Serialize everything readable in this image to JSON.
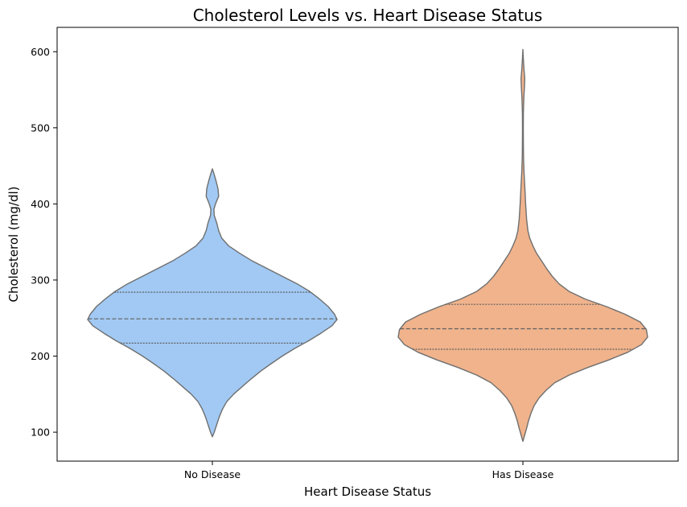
{
  "chart_data": {
    "type": "violin",
    "title": "Cholesterol Levels vs. Heart Disease Status",
    "xlabel": "Heart Disease Status",
    "ylabel": "Cholesterol (mg/dl)",
    "ylim": [
      62,
      632
    ],
    "yticks": [
      100,
      200,
      300,
      400,
      500,
      600
    ],
    "grid": false,
    "legend": "none",
    "categories": [
      "No Disease",
      "Has Disease"
    ],
    "series": [
      {
        "category": "No Disease",
        "color": "#a1c9f4",
        "range": [
          94,
          446
        ],
        "quartiles": {
          "q1": 217,
          "median": 249,
          "q3": 284
        },
        "density": [
          [
            94,
            0.0
          ],
          [
            100,
            0.015
          ],
          [
            110,
            0.035
          ],
          [
            120,
            0.055
          ],
          [
            130,
            0.08
          ],
          [
            140,
            0.115
          ],
          [
            150,
            0.17
          ],
          [
            160,
            0.24
          ],
          [
            170,
            0.31
          ],
          [
            180,
            0.385
          ],
          [
            190,
            0.47
          ],
          [
            200,
            0.56
          ],
          [
            210,
            0.66
          ],
          [
            220,
            0.77
          ],
          [
            230,
            0.87
          ],
          [
            240,
            0.96
          ],
          [
            248,
            1.0
          ],
          [
            255,
            0.98
          ],
          [
            265,
            0.93
          ],
          [
            275,
            0.86
          ],
          [
            285,
            0.78
          ],
          [
            295,
            0.68
          ],
          [
            305,
            0.56
          ],
          [
            315,
            0.44
          ],
          [
            325,
            0.32
          ],
          [
            335,
            0.22
          ],
          [
            345,
            0.13
          ],
          [
            355,
            0.075
          ],
          [
            365,
            0.05
          ],
          [
            375,
            0.035
          ],
          [
            385,
            0.015
          ],
          [
            393,
            0.012
          ],
          [
            400,
            0.025
          ],
          [
            410,
            0.05
          ],
          [
            420,
            0.045
          ],
          [
            430,
            0.03
          ],
          [
            440,
            0.012
          ],
          [
            446,
            0.0
          ]
        ]
      },
      {
        "category": "Has Disease",
        "color": "#f0b38c",
        "range": [
          88,
          603
        ],
        "quartiles": {
          "q1": 209,
          "median": 236,
          "q3": 268
        },
        "density": [
          [
            88,
            0.0
          ],
          [
            95,
            0.012
          ],
          [
            105,
            0.03
          ],
          [
            115,
            0.045
          ],
          [
            125,
            0.065
          ],
          [
            135,
            0.09
          ],
          [
            145,
            0.13
          ],
          [
            155,
            0.185
          ],
          [
            165,
            0.255
          ],
          [
            175,
            0.37
          ],
          [
            185,
            0.52
          ],
          [
            195,
            0.69
          ],
          [
            205,
            0.84
          ],
          [
            215,
            0.95
          ],
          [
            225,
            1.0
          ],
          [
            235,
            0.99
          ],
          [
            245,
            0.94
          ],
          [
            255,
            0.82
          ],
          [
            265,
            0.67
          ],
          [
            275,
            0.5
          ],
          [
            285,
            0.37
          ],
          [
            295,
            0.29
          ],
          [
            305,
            0.235
          ],
          [
            315,
            0.19
          ],
          [
            325,
            0.15
          ],
          [
            335,
            0.11
          ],
          [
            345,
            0.08
          ],
          [
            355,
            0.055
          ],
          [
            365,
            0.04
          ],
          [
            380,
            0.03
          ],
          [
            400,
            0.022
          ],
          [
            420,
            0.016
          ],
          [
            440,
            0.01
          ],
          [
            460,
            0.005
          ],
          [
            480,
            0.004
          ],
          [
            500,
            0.003
          ],
          [
            520,
            0.004
          ],
          [
            540,
            0.008
          ],
          [
            555,
            0.013
          ],
          [
            565,
            0.015
          ],
          [
            575,
            0.01
          ],
          [
            590,
            0.004
          ],
          [
            603,
            0.0
          ]
        ]
      }
    ]
  }
}
